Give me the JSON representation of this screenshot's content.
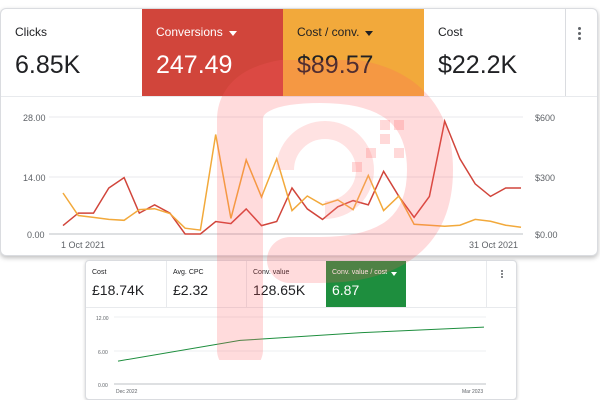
{
  "top_panel": {
    "tiles": [
      {
        "label": "Clicks",
        "value": "6.85K"
      },
      {
        "label": "Conversions",
        "value": "247.49"
      },
      {
        "label": "Cost / conv.",
        "value": "$89.57"
      },
      {
        "label": "Cost",
        "value": "$22.2K"
      }
    ],
    "colors": {
      "conversions": "#d1453b",
      "cost_per_conv": "#f2a93b"
    }
  },
  "bottom_panel": {
    "tiles": [
      {
        "label": "Cost",
        "value": "£18.74K"
      },
      {
        "label": "Avg. CPC",
        "value": "£2.32"
      },
      {
        "label": "Conv. value",
        "value": "128.65K"
      },
      {
        "label": "Conv. value / cost",
        "value": "6.87"
      }
    ],
    "colors": {
      "selected": "#1e8e3e"
    }
  },
  "chart_data": [
    {
      "type": "line",
      "x": [
        "1 Oct 2021",
        "2",
        "3",
        "4",
        "5",
        "6",
        "7",
        "8",
        "9",
        "10",
        "11",
        "12",
        "13",
        "14",
        "15",
        "16",
        "17",
        "18",
        "19",
        "20",
        "21",
        "22",
        "23",
        "24",
        "25",
        "26",
        "27",
        "28",
        "29",
        "30",
        "31 Oct 2021"
      ],
      "x_tick_labels": [
        "1 Oct 2021",
        "31 Oct 2021"
      ],
      "y_left_ticks": [
        "28.00",
        "14.00",
        "0.00"
      ],
      "y_right_ticks": [
        "$600",
        "$300",
        "$0.00"
      ],
      "ylim_left": [
        0,
        28
      ],
      "ylim_right": [
        0,
        600
      ],
      "grid": true,
      "series": [
        {
          "axis": "left",
          "color": "#d1453b",
          "values": [
            2,
            5,
            5,
            11,
            13.5,
            5,
            7,
            5,
            0,
            0,
            3,
            2.5,
            6,
            2,
            3,
            11,
            6,
            3.5,
            6.5,
            8,
            7,
            15,
            9,
            4,
            9,
            27,
            18,
            12,
            9,
            11,
            11
          ]
        },
        {
          "axis": "right",
          "color": "#f2a93b",
          "values": [
            210,
            95,
            85,
            75,
            70,
            125,
            130,
            105,
            30,
            20,
            510,
            80,
            380,
            190,
            385,
            120,
            195,
            150,
            175,
            125,
            300,
            120,
            195,
            50,
            45,
            40,
            45,
            75,
            65,
            45,
            35
          ]
        }
      ]
    },
    {
      "type": "line",
      "x": [
        "Dec 2022",
        "Jan 2023",
        "Feb 2023",
        "Mar 2023"
      ],
      "x_tick_labels": [
        "Dec 2022",
        "Mar 2023"
      ],
      "y_ticks": [
        "12.00",
        "6.00",
        "0.00"
      ],
      "ylim": [
        0,
        12
      ],
      "grid": true,
      "series": [
        {
          "color": "#1e8e3e",
          "values": [
            4.1,
            7.8,
            9.2,
            10.2
          ]
        }
      ]
    }
  ]
}
